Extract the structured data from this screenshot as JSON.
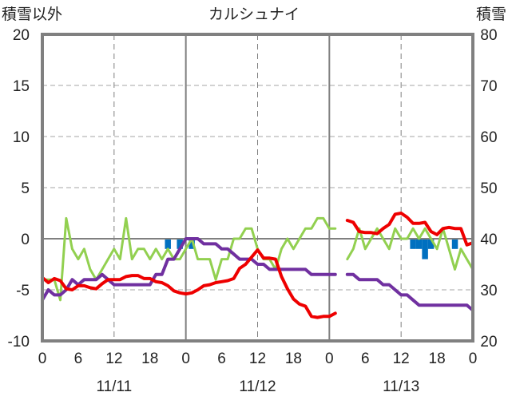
{
  "chart_data": {
    "type": "line",
    "title": "カルシュナイ",
    "left_axis": {
      "label": "積雪以外",
      "ticks": [
        "20",
        "15",
        "10",
        "5",
        "0",
        "-5",
        "-10"
      ],
      "ylim": [
        -10,
        20
      ]
    },
    "right_axis": {
      "label": "積雪",
      "ticks": [
        "80",
        "70",
        "60",
        "50",
        "40",
        "30",
        "20"
      ],
      "ylim": [
        20,
        80
      ]
    },
    "x_ticks": [
      "0",
      "6",
      "12",
      "18",
      "0",
      "6",
      "12",
      "18",
      "0",
      "6",
      "12",
      "18",
      "0"
    ],
    "dates": [
      "11/11",
      "11/12",
      "11/13"
    ],
    "xlim": [
      0,
      72
    ],
    "grid": true,
    "colors": {
      "temperature": "#ee0000",
      "wind": "#92d050",
      "snow_depth": "#7030a0",
      "precipitation": "#0070c0",
      "frame": "#808080"
    },
    "series": [
      {
        "key": "temperature",
        "axis": "left",
        "segments": [
          [
            [
              0,
              -3.8
            ],
            [
              1,
              -4.3
            ],
            [
              2,
              -3.9
            ],
            [
              3,
              -4.1
            ],
            [
              4,
              -4.9
            ],
            [
              5,
              -5.0
            ],
            [
              6,
              -4.6
            ],
            [
              7,
              -4.6
            ],
            [
              8,
              -4.8
            ],
            [
              9,
              -4.9
            ],
            [
              10,
              -4.4
            ],
            [
              11,
              -4.0
            ],
            [
              12,
              -4.0
            ],
            [
              13,
              -4.0
            ],
            [
              14,
              -3.7
            ],
            [
              15,
              -3.6
            ],
            [
              16,
              -3.6
            ],
            [
              17,
              -3.9
            ],
            [
              18,
              -3.9
            ],
            [
              19,
              -4.2
            ],
            [
              20,
              -4.3
            ],
            [
              21,
              -4.6
            ],
            [
              22,
              -5.1
            ],
            [
              23,
              -5.3
            ],
            [
              24,
              -5.4
            ],
            [
              25,
              -5.3
            ],
            [
              26,
              -5.0
            ],
            [
              27,
              -4.6
            ],
            [
              28,
              -4.5
            ],
            [
              29,
              -4.3
            ],
            [
              30,
              -4.2
            ],
            [
              31,
              -4.1
            ],
            [
              32,
              -3.9
            ],
            [
              33,
              -2.9
            ],
            [
              34,
              -2.5
            ],
            [
              35,
              -1.8
            ],
            [
              36,
              -1.1
            ],
            [
              37,
              -1.9
            ],
            [
              38,
              -1.9
            ],
            [
              39,
              -2.0
            ],
            [
              40,
              -3.7
            ],
            [
              41,
              -4.9
            ],
            [
              42,
              -5.9
            ],
            [
              43,
              -6.4
            ],
            [
              44,
              -6.6
            ],
            [
              45,
              -7.6
            ],
            [
              46,
              -7.7
            ],
            [
              47,
              -7.6
            ],
            [
              48,
              -7.6
            ],
            [
              49,
              -7.3
            ]
          ],
          [
            [
              51,
              1.8
            ],
            [
              52,
              1.6
            ],
            [
              53,
              0.7
            ],
            [
              54,
              0.6
            ],
            [
              55,
              0.6
            ],
            [
              56,
              0.5
            ],
            [
              57,
              1.0
            ],
            [
              58,
              1.4
            ],
            [
              59,
              2.4
            ],
            [
              60,
              2.5
            ],
            [
              61,
              2.1
            ],
            [
              62,
              1.5
            ],
            [
              63,
              1.5
            ],
            [
              64,
              1.6
            ],
            [
              65,
              0.7
            ],
            [
              66,
              0.4
            ],
            [
              67,
              1.0
            ],
            [
              68,
              1.1
            ],
            [
              69,
              1.0
            ],
            [
              70,
              1.0
            ],
            [
              71,
              -0.6
            ],
            [
              72,
              -0.4
            ]
          ]
        ]
      },
      {
        "key": "wind",
        "axis": "left",
        "segments": [
          [
            [
              0,
              -4
            ],
            [
              1,
              -4
            ],
            [
              2,
              -4
            ],
            [
              3,
              -6
            ],
            [
              4,
              2
            ],
            [
              5,
              -1
            ],
            [
              6,
              -2
            ],
            [
              7,
              -1
            ],
            [
              8,
              -3
            ],
            [
              9,
              -4
            ],
            [
              10,
              -3
            ],
            [
              11,
              -2
            ],
            [
              12,
              -1
            ],
            [
              13,
              -2
            ],
            [
              14,
              2
            ],
            [
              15,
              -2
            ],
            [
              16,
              -1
            ],
            [
              17,
              -1
            ],
            [
              18,
              -2
            ],
            [
              19,
              -1
            ],
            [
              20,
              -2
            ],
            [
              21,
              -1
            ],
            [
              22,
              -2
            ],
            [
              23,
              -2
            ],
            [
              24,
              -1
            ],
            [
              25,
              0
            ],
            [
              26,
              -2
            ],
            [
              27,
              -2
            ],
            [
              28,
              -2
            ],
            [
              29,
              -4
            ],
            [
              30,
              -2
            ],
            [
              31,
              -2
            ],
            [
              32,
              0
            ],
            [
              33,
              0
            ],
            [
              34,
              1
            ],
            [
              35,
              1
            ],
            [
              36,
              -1
            ],
            [
              37,
              -2
            ],
            [
              38,
              -2
            ],
            [
              39,
              -3
            ],
            [
              40,
              -1
            ],
            [
              41,
              0
            ],
            [
              42,
              -1
            ],
            [
              43,
              0
            ],
            [
              44,
              1
            ],
            [
              45,
              1
            ],
            [
              46,
              2
            ],
            [
              47,
              2
            ],
            [
              48,
              1
            ],
            [
              49,
              1
            ]
          ],
          [
            [
              51,
              -2
            ],
            [
              52,
              -1
            ],
            [
              53,
              1
            ],
            [
              54,
              -1
            ],
            [
              55,
              0
            ],
            [
              56,
              1
            ],
            [
              57,
              0
            ],
            [
              58,
              -1
            ],
            [
              59,
              1
            ],
            [
              60,
              0
            ],
            [
              61,
              0
            ],
            [
              62,
              1
            ],
            [
              63,
              0
            ],
            [
              64,
              1
            ],
            [
              65,
              0
            ],
            [
              66,
              -1
            ],
            [
              67,
              1
            ],
            [
              68,
              -1
            ],
            [
              69,
              -3
            ],
            [
              70,
              -1
            ],
            [
              71,
              -2
            ],
            [
              72,
              -3
            ]
          ]
        ]
      },
      {
        "key": "snow_depth",
        "axis": "right",
        "segments": [
          [
            [
              0,
              28
            ],
            [
              1,
              30
            ],
            [
              2,
              29
            ],
            [
              3,
              29
            ],
            [
              4,
              30
            ],
            [
              5,
              32
            ],
            [
              6,
              31
            ],
            [
              7,
              32
            ],
            [
              8,
              32
            ],
            [
              9,
              32
            ],
            [
              10,
              33
            ],
            [
              11,
              32
            ],
            [
              12,
              31
            ],
            [
              13,
              31
            ],
            [
              14,
              31
            ],
            [
              15,
              31
            ],
            [
              16,
              31
            ],
            [
              17,
              31
            ],
            [
              18,
              31
            ],
            [
              19,
              33
            ],
            [
              20,
              33
            ],
            [
              21,
              36
            ],
            [
              22,
              36
            ],
            [
              23,
              38
            ],
            [
              24,
              40
            ],
            [
              25,
              40
            ],
            [
              26,
              40
            ],
            [
              27,
              39
            ],
            [
              28,
              39
            ],
            [
              29,
              39
            ],
            [
              30,
              38
            ],
            [
              31,
              38
            ],
            [
              32,
              37
            ],
            [
              33,
              36
            ],
            [
              34,
              36
            ],
            [
              35,
              36
            ],
            [
              36,
              35
            ],
            [
              37,
              35
            ],
            [
              38,
              34
            ],
            [
              39,
              34
            ],
            [
              40,
              34
            ],
            [
              41,
              34
            ],
            [
              42,
              34
            ],
            [
              43,
              34
            ],
            [
              44,
              34
            ],
            [
              45,
              33
            ],
            [
              46,
              33
            ],
            [
              47,
              33
            ],
            [
              48,
              33
            ],
            [
              49,
              33
            ]
          ],
          [
            [
              51,
              33
            ],
            [
              52,
              33
            ],
            [
              53,
              32
            ],
            [
              54,
              32
            ],
            [
              55,
              32
            ],
            [
              56,
              32
            ],
            [
              57,
              31
            ],
            [
              58,
              31
            ],
            [
              59,
              30
            ],
            [
              60,
              29
            ],
            [
              61,
              29
            ],
            [
              62,
              28
            ],
            [
              63,
              27
            ],
            [
              64,
              27
            ],
            [
              65,
              27
            ],
            [
              66,
              27
            ],
            [
              67,
              27
            ],
            [
              68,
              27
            ],
            [
              69,
              27
            ],
            [
              70,
              27
            ],
            [
              71,
              27
            ],
            [
              72,
              26
            ]
          ]
        ]
      }
    ],
    "precipitation_bars": [
      [
        21,
        1
      ],
      [
        23,
        1
      ],
      [
        25,
        1
      ],
      [
        62,
        1
      ],
      [
        63,
        1
      ],
      [
        64,
        2
      ],
      [
        65,
        1
      ],
      [
        69,
        1
      ]
    ]
  }
}
